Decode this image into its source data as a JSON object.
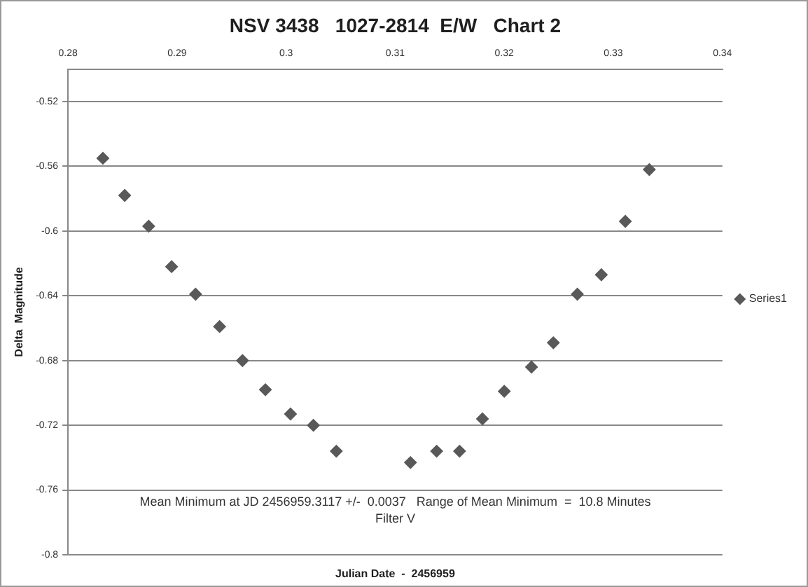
{
  "chart_data": {
    "type": "scatter",
    "title": "NSV 3438   1027-2814  E/W   Chart 2",
    "xlabel": "Julian Date  -  2456959",
    "ylabel": "Delta  Magnitude",
    "annotations": [
      "Mean Minimum at JD 2456959.3117 +/-  0.0037   Range of Mean Minimum  =  10.8 Minutes",
      "Filter V"
    ],
    "x": [
      0.2832,
      0.2852,
      0.2874,
      0.2895,
      0.2917,
      0.2939,
      0.296,
      0.2981,
      0.3004,
      0.3025,
      0.3046,
      0.3114,
      0.3138,
      0.3159,
      0.318,
      0.32,
      0.3225,
      0.3245,
      0.3267,
      0.3289,
      0.3311,
      0.3333
    ],
    "series": [
      {
        "name": "Series1",
        "color": "#595959",
        "values": [
          -0.555,
          -0.578,
          -0.597,
          -0.622,
          -0.639,
          -0.659,
          -0.68,
          -0.698,
          -0.713,
          -0.72,
          -0.736,
          -0.743,
          -0.736,
          -0.736,
          -0.716,
          -0.699,
          -0.684,
          -0.669,
          -0.639,
          -0.627,
          -0.594,
          -0.562
        ]
      }
    ],
    "xlim": [
      0.28,
      0.34
    ],
    "xticks": [
      0.28,
      0.29,
      0.3,
      0.31,
      0.32,
      0.33,
      0.34
    ],
    "ylim": [
      -0.8,
      -0.5
    ],
    "yticks": [
      -0.8,
      -0.76,
      -0.72,
      -0.68,
      -0.64,
      -0.6,
      -0.56,
      -0.52
    ],
    "grid": "y",
    "legend": "right",
    "marker": "diamond"
  }
}
